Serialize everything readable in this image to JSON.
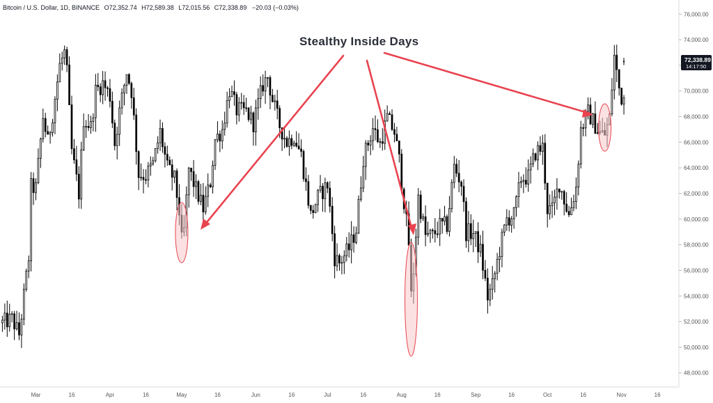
{
  "header": {
    "symbol": "Bitcoin / U.S. Dollar, 1D, BINANCE",
    "open_label": "O",
    "open": "72,352.74",
    "high_label": "H",
    "high": "72,589.38",
    "low_label": "L",
    "low": "72,015.56",
    "close_label": "C",
    "close": "72,338.89",
    "change": "−20.03 (−0.03%)"
  },
  "annotation_title": "Stealthy Inside Days",
  "last_price_tag": {
    "price": "72,338.89",
    "countdown": "14:17:50"
  },
  "colors": {
    "candle": "#000000",
    "annotation": "#e8434f",
    "highlight_fill": "#f8c8c8",
    "price_tag_bg": "#131722"
  },
  "chart_data": {
    "type": "candlestick",
    "title": "Stealthy Inside Days",
    "symbol": "Bitcoin / U.S. Dollar",
    "timeframe": "1D",
    "exchange": "BINANCE",
    "xlim": [
      "2024-02-15",
      "2024-11-25"
    ],
    "ylim": [
      46900,
      77100
    ],
    "y_tick_labels": [
      "76,000.00",
      "74,000.00",
      "72,000.00",
      "70,000.00",
      "68,000.00",
      "66,000.00",
      "64,000.00",
      "62,000.00",
      "60,000.00",
      "58,000.00",
      "56,000.00",
      "54,000.00",
      "52,000.00",
      "50,000.00",
      "48,000.00"
    ],
    "x_tick_labels": [
      "Mar",
      "16",
      "Apr",
      "16",
      "May",
      "16",
      "Jun",
      "16",
      "Jul",
      "16",
      "Aug",
      "16",
      "Sep",
      "16",
      "Oct",
      "16",
      "Nov",
      "16"
    ],
    "close_path": [
      [
        "2024-02-16",
        51900
      ],
      [
        "2024-02-20",
        52200
      ],
      [
        "2024-02-23",
        51000
      ],
      [
        "2024-02-27",
        57000
      ],
      [
        "2024-02-28",
        62500
      ],
      [
        "2024-03-01",
        62400
      ],
      [
        "2024-03-04",
        68000
      ],
      [
        "2024-03-06",
        66000
      ],
      [
        "2024-03-08",
        68200
      ],
      [
        "2024-03-11",
        72000
      ],
      [
        "2024-03-13",
        73000
      ],
      [
        "2024-03-14",
        71400
      ],
      [
        "2024-03-16",
        65300
      ],
      [
        "2024-03-19",
        62000
      ],
      [
        "2024-03-21",
        67800
      ],
      [
        "2024-03-24",
        67200
      ],
      [
        "2024-03-26",
        70000
      ],
      [
        "2024-03-29",
        70600
      ],
      [
        "2024-04-01",
        69600
      ],
      [
        "2024-04-03",
        65900
      ],
      [
        "2024-04-05",
        68400
      ],
      [
        "2024-04-08",
        71500
      ],
      [
        "2024-04-10",
        70000
      ],
      [
        "2024-04-13",
        63500
      ],
      [
        "2024-04-16",
        63400
      ],
      [
        "2024-04-19",
        64300
      ],
      [
        "2024-04-22",
        66800
      ],
      [
        "2024-04-25",
        64000
      ],
      [
        "2024-04-28",
        63100
      ],
      [
        "2024-04-30",
        60600
      ],
      [
        "2024-05-01",
        58300
      ],
      [
        "2024-05-02",
        59100
      ],
      [
        "2024-05-04",
        63900
      ],
      [
        "2024-05-07",
        62300
      ],
      [
        "2024-05-10",
        60800
      ],
      [
        "2024-05-13",
        62900
      ],
      [
        "2024-05-15",
        66200
      ],
      [
        "2024-05-18",
        67000
      ],
      [
        "2024-05-21",
        70100
      ],
      [
        "2024-05-24",
        68500
      ],
      [
        "2024-05-28",
        68400
      ],
      [
        "2024-05-31",
        67500
      ],
      [
        "2024-06-04",
        70500
      ],
      [
        "2024-06-06",
        71100
      ],
      [
        "2024-06-08",
        69300
      ],
      [
        "2024-06-11",
        67300
      ],
      [
        "2024-06-14",
        66000
      ],
      [
        "2024-06-17",
        66500
      ],
      [
        "2024-06-20",
        65000
      ],
      [
        "2024-06-24",
        60300
      ],
      [
        "2024-06-27",
        61700
      ],
      [
        "2024-07-01",
        62700
      ],
      [
        "2024-07-04",
        57000
      ],
      [
        "2024-07-06",
        56600
      ],
      [
        "2024-07-10",
        57700
      ],
      [
        "2024-07-13",
        59200
      ],
      [
        "2024-07-16",
        64800
      ],
      [
        "2024-07-20",
        67100
      ],
      [
        "2024-07-23",
        65900
      ],
      [
        "2024-07-26",
        67900
      ],
      [
        "2024-07-29",
        66800
      ],
      [
        "2024-07-31",
        64600
      ],
      [
        "2024-08-02",
        61400
      ],
      [
        "2024-08-04",
        58100
      ],
      [
        "2024-08-05",
        54000
      ],
      [
        "2024-08-06",
        56000
      ],
      [
        "2024-08-08",
        61700
      ],
      [
        "2024-08-11",
        58700
      ],
      [
        "2024-08-14",
        58700
      ],
      [
        "2024-08-17",
        59500
      ],
      [
        "2024-08-20",
        59500
      ],
      [
        "2024-08-23",
        64100
      ],
      [
        "2024-08-26",
        62800
      ],
      [
        "2024-08-28",
        59000
      ],
      [
        "2024-08-31",
        58900
      ],
      [
        "2024-09-03",
        57500
      ],
      [
        "2024-09-06",
        53900
      ],
      [
        "2024-09-08",
        54800
      ],
      [
        "2024-09-11",
        57600
      ],
      [
        "2024-09-14",
        60000
      ],
      [
        "2024-09-17",
        60300
      ],
      [
        "2024-09-20",
        63200
      ],
      [
        "2024-09-23",
        63300
      ],
      [
        "2024-09-26",
        65200
      ],
      [
        "2024-09-29",
        65600
      ],
      [
        "2024-10-01",
        60800
      ],
      [
        "2024-10-03",
        60700
      ],
      [
        "2024-10-06",
        62800
      ],
      [
        "2024-10-10",
        60300
      ],
      [
        "2024-10-13",
        62500
      ],
      [
        "2024-10-15",
        67000
      ],
      [
        "2024-10-18",
        68300
      ],
      [
        "2024-10-21",
        67300
      ],
      [
        "2024-10-23",
        66700
      ],
      [
        "2024-10-25",
        66600
      ],
      [
        "2024-10-27",
        67900
      ],
      [
        "2024-10-29",
        72700
      ],
      [
        "2024-10-31",
        70200
      ],
      [
        "2024-11-01",
        69500
      ]
    ],
    "highlighted_inside_days": [
      {
        "date": "2024-05-01",
        "low": 56600,
        "high": 61300
      },
      {
        "date": "2024-08-05",
        "low": 49300,
        "high": 58200
      },
      {
        "date": "2024-10-25",
        "low": 65300,
        "high": 69000
      }
    ],
    "last_close": 72338.89,
    "grid": false
  }
}
